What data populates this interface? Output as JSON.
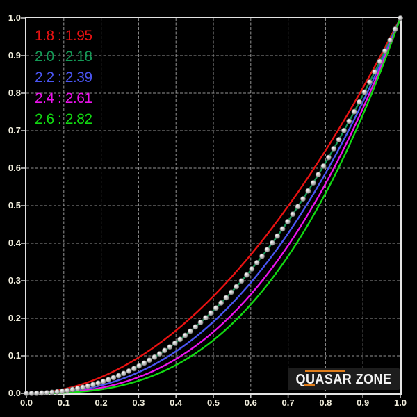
{
  "chart_data": {
    "type": "line",
    "description": "Monitor gamma measurement chart: power-law curves y = x^gamma on black background with dashed grid",
    "xlim": [
      0.0,
      1.0
    ],
    "ylim": [
      0.0,
      1.0
    ],
    "grid": "dashed",
    "x_ticks": [
      "0.0",
      "0.1",
      "0.2",
      "0.3",
      "0.4",
      "0.5",
      "0.6",
      "0.7",
      "0.8",
      "0.9",
      "1.0"
    ],
    "y_ticks": [
      "0.0",
      "0.1",
      "0.2",
      "0.3",
      "0.4",
      "0.5",
      "0.6",
      "0.7",
      "0.8",
      "0.9",
      "1.0"
    ],
    "legend_position": "top-left",
    "series": [
      {
        "label": "1.8 : 1.95",
        "target_gamma": 1.8,
        "measured_gamma": 1.95,
        "exponent": 1.95,
        "color": "#e81212"
      },
      {
        "label": "2.0 : 2.18",
        "target_gamma": 2.0,
        "measured_gamma": 2.18,
        "exponent": 2.18,
        "color": "#149a56"
      },
      {
        "label": "2.2 : 2.39",
        "target_gamma": 2.2,
        "measured_gamma": 2.39,
        "exponent": 2.39,
        "color": "#4a55f2"
      },
      {
        "label": "2.4 : 2.61",
        "target_gamma": 2.4,
        "measured_gamma": 2.61,
        "exponent": 2.61,
        "color": "#ec12ec"
      },
      {
        "label": "2.6 : 2.82",
        "target_gamma": 2.6,
        "measured_gamma": 2.82,
        "exponent": 2.82,
        "color": "#12d912"
      }
    ],
    "markers": {
      "description": "gray sphere measurement points riding on the 2.0 : 2.18 curve from (0,0) to (1,1)",
      "on_series": "2.0 : 2.18",
      "exponent": 2.18,
      "approx_count": 74,
      "color": "#c8c8c8"
    }
  },
  "branding": {
    "text": "QUASAR ZONE",
    "bg": "#1d1d1d",
    "text_color": "#f4f4f4",
    "accent_color": "#e07d1a"
  },
  "colors": {
    "background": "#000000",
    "grid": "#aeaeae",
    "border": "#e3e3e3",
    "tick": "#cfcfcf",
    "tick_label": "#f0eddc"
  }
}
